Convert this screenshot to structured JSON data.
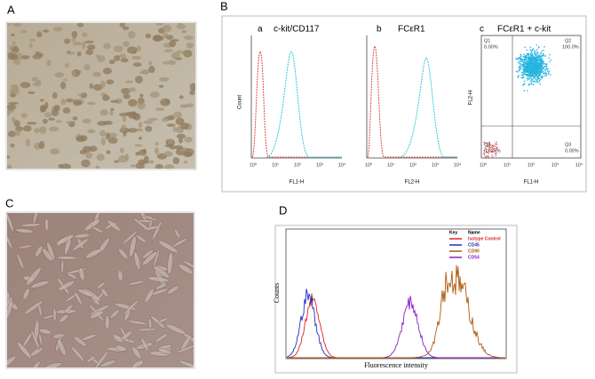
{
  "labels": {
    "a": "A",
    "b": "B",
    "c": "C",
    "d": "D"
  },
  "panel_b": {
    "subpanels": [
      {
        "letter": "a",
        "title": "c-kit/CD117",
        "x_label": "FL1-H",
        "y_label": "Count"
      },
      {
        "letter": "b",
        "title": "FCεR1",
        "x_label": "FL2-H"
      },
      {
        "letter": "c",
        "title": "FCεR1 + c-kit",
        "x_label": "FL1-H",
        "y_label": "FL2-H",
        "quadrants": [
          {
            "name": "Q1",
            "value": "0.00%"
          },
          {
            "name": "Q2",
            "value": "100.0%"
          },
          {
            "name": "Q3",
            "value": "0.00%"
          },
          {
            "name": "Q4",
            "value": "0.023%"
          }
        ]
      }
    ],
    "x_ticks": [
      "10⁰",
      "10¹",
      "10²",
      "10³",
      "10⁴"
    ]
  },
  "panel_d": {
    "key_header": "Key",
    "name_header": "Name",
    "legend": [
      {
        "name": "Isotype Control",
        "color": "#e02020"
      },
      {
        "name": "CD45",
        "color": "#2030c0"
      },
      {
        "name": "CD90",
        "color": "#b05a10"
      },
      {
        "name": "CD54",
        "color": "#8a20c0"
      }
    ],
    "y_label": "Counts",
    "x_label": "Fluorescence intensity"
  }
}
